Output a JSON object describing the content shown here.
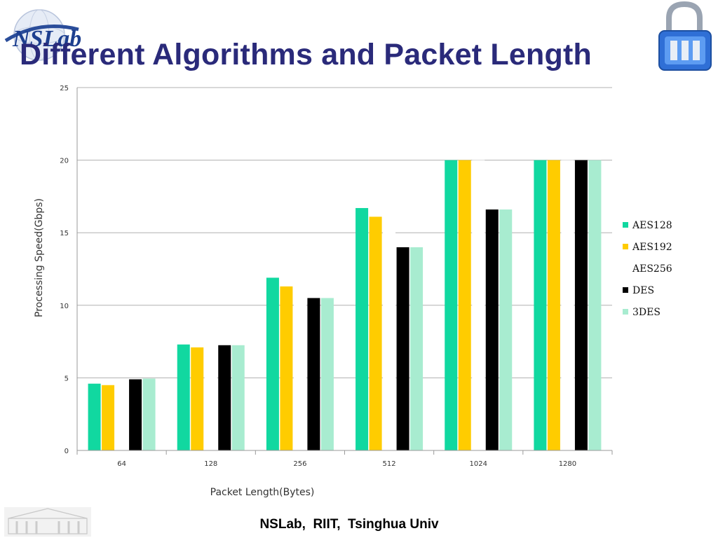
{
  "slide": {
    "title": "Different Algorithms and Packet Length",
    "logo_text": "NSLab",
    "footer": "NSLab,  RIIT,  Tsinghua Univ"
  },
  "icons": {
    "left_logo": "nslab-globe-logo",
    "right_logo": "padlock-icon",
    "bottom_left": "campus-building-watermark"
  },
  "colors": {
    "AES128": "#11d8a0",
    "AES192": "#ffcc00",
    "AES256": "#ffffff",
    "DES": "#000000",
    "3DES": "#a8ecd0",
    "title": "#2a2a7a"
  },
  "chart_data": {
    "type": "bar",
    "title": "",
    "xlabel": "Packet Length(Bytes)",
    "ylabel": "Processing Speed(Gbps)",
    "categories": [
      "64",
      "128",
      "256",
      "512",
      "1024",
      "1280"
    ],
    "ylim": [
      0,
      25
    ],
    "yticks": [
      0,
      5,
      10,
      15,
      20,
      25
    ],
    "grid": true,
    "legend_position": "right",
    "series": [
      {
        "name": "AES128",
        "values": [
          4.6,
          7.3,
          11.9,
          16.7,
          20,
          20
        ]
      },
      {
        "name": "AES192",
        "values": [
          4.5,
          7.1,
          11.3,
          16.1,
          20,
          20
        ]
      },
      {
        "name": "AES256",
        "values": [
          4.4,
          7.0,
          10.9,
          15.5,
          20,
          20
        ]
      },
      {
        "name": "DES",
        "values": [
          4.9,
          7.25,
          10.5,
          14.0,
          16.6,
          20
        ]
      },
      {
        "name": "3DES",
        "values": [
          4.95,
          7.25,
          10.5,
          14.0,
          16.6,
          20
        ]
      }
    ]
  }
}
